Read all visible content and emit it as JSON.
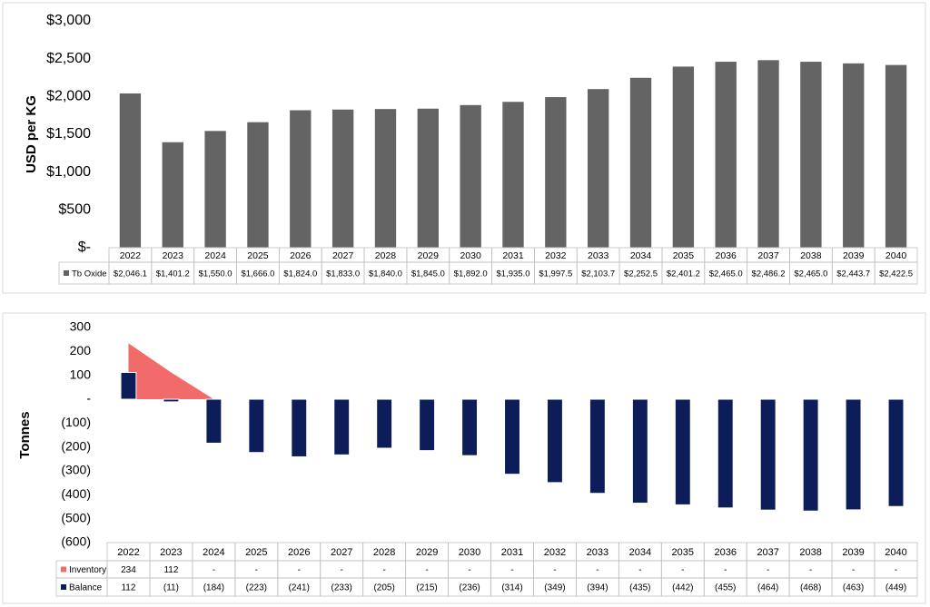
{
  "chart_data": [
    {
      "type": "bar",
      "y_label": "USD per KG",
      "categories": [
        "2022",
        "2023",
        "2024",
        "2025",
        "2026",
        "2027",
        "2028",
        "2029",
        "2030",
        "2031",
        "2032",
        "2033",
        "2034",
        "2035",
        "2036",
        "2037",
        "2038",
        "2039",
        "2040"
      ],
      "series": [
        {
          "name": "Tb Oxide",
          "type": "bar",
          "color": "#646464",
          "values": [
            2046.1,
            1401.2,
            1550.0,
            1666.0,
            1824.0,
            1833.0,
            1840.0,
            1845.0,
            1892.0,
            1935.0,
            1997.5,
            2103.7,
            2252.5,
            2401.2,
            2465.0,
            2486.2,
            2465.0,
            2443.7,
            2422.5
          ],
          "value_labels": [
            "$2,046.1",
            "$1,401.2",
            "$1,550.0",
            "$1,666.0",
            "$1,824.0",
            "$1,833.0",
            "$1,840.0",
            "$1,845.0",
            "$1,892.0",
            "$1,935.0",
            "$1,997.5",
            "$2,103.7",
            "$2,252.5",
            "$2,401.2",
            "$2,465.0",
            "$2,486.2",
            "$2,465.0",
            "$2,443.7",
            "$2,422.5"
          ]
        }
      ],
      "ylim": [
        0,
        3000
      ],
      "yticks": [
        {
          "value": 0,
          "label": "$-"
        },
        {
          "value": 500,
          "label": "$500"
        },
        {
          "value": 1000,
          "label": "$1,000"
        },
        {
          "value": 1500,
          "label": "$1,500"
        },
        {
          "value": 2000,
          "label": "$2,000"
        },
        {
          "value": 2500,
          "label": "$2,500"
        },
        {
          "value": 3000,
          "label": "$3,000"
        }
      ]
    },
    {
      "type": "combo",
      "y_label": "Tonnes",
      "categories": [
        "2022",
        "2023",
        "2024",
        "2025",
        "2026",
        "2027",
        "2028",
        "2029",
        "2030",
        "2031",
        "2032",
        "2033",
        "2034",
        "2035",
        "2036",
        "2037",
        "2038",
        "2039",
        "2040"
      ],
      "series": [
        {
          "name": "Inventory",
          "type": "area",
          "color": "#f26b6b",
          "values": [
            234,
            112,
            0,
            0,
            0,
            0,
            0,
            0,
            0,
            0,
            0,
            0,
            0,
            0,
            0,
            0,
            0,
            0,
            0
          ],
          "value_labels": [
            "234",
            "112",
            "-",
            "-",
            "-",
            "-",
            "-",
            "-",
            "-",
            "-",
            "-",
            "-",
            "-",
            "-",
            "-",
            "-",
            "-",
            "-",
            "-"
          ]
        },
        {
          "name": "Balance",
          "type": "bar",
          "color": "#0c1d5a",
          "values": [
            112,
            -11,
            -184,
            -223,
            -241,
            -233,
            -205,
            -215,
            -236,
            -314,
            -349,
            -394,
            -435,
            -442,
            -455,
            -464,
            -468,
            -463,
            -449
          ],
          "value_labels": [
            "112",
            "(11)",
            "(184)",
            "(223)",
            "(241)",
            "(233)",
            "(205)",
            "(215)",
            "(236)",
            "(314)",
            "(349)",
            "(394)",
            "(435)",
            "(442)",
            "(455)",
            "(464)",
            "(468)",
            "(463)",
            "(449)"
          ]
        }
      ],
      "ylim": [
        -600,
        300
      ],
      "yticks": [
        {
          "value": -600,
          "label": "(600)"
        },
        {
          "value": -500,
          "label": "(500)"
        },
        {
          "value": -400,
          "label": "(400)"
        },
        {
          "value": -300,
          "label": "(300)"
        },
        {
          "value": -200,
          "label": "(200)"
        },
        {
          "value": -100,
          "label": "(100)"
        },
        {
          "value": 0,
          "label": "-"
        },
        100,
        200,
        300
      ]
    }
  ]
}
